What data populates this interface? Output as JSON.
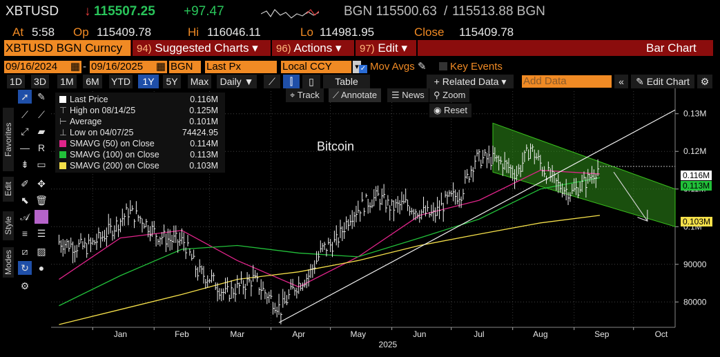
{
  "header": {
    "ticker": "XBTUSD",
    "last_price": "115507.25",
    "change": "+97.47",
    "source_bid": "BGN 115500.63",
    "ask": "115513.88 BGN",
    "at_label": "At",
    "time": "5:58",
    "open_label": "Op",
    "open": "115409.78",
    "high_label": "Hi",
    "high": "116046.11",
    "low_label": "Lo",
    "low": "114981.95",
    "close_label": "Close",
    "close": "115409.78"
  },
  "menubar": {
    "security": "XBTUSD BGN Curncy",
    "items": [
      {
        "num": "94)",
        "label": "Suggested Charts"
      },
      {
        "num": "96)",
        "label": "Actions"
      },
      {
        "num": "97)",
        "label": "Edit"
      }
    ],
    "view": "Bar Chart"
  },
  "controls": {
    "start_date": "09/16/2024",
    "end_date": "09/16/2025",
    "source": "BGN",
    "field": "Last Px",
    "currency": "Local CCY",
    "mov_avgs": "Mov Avgs",
    "key_events": "Key Events"
  },
  "toolbar": {
    "ranges": [
      "1D",
      "3D",
      "1M",
      "6M",
      "YTD",
      "1Y",
      "5Y",
      "Max"
    ],
    "active_range": "1Y",
    "period": "Daily",
    "table": "Table",
    "related_data": "Related Data",
    "add_data_placeholder": "Add Data",
    "edit_chart": "Edit Chart"
  },
  "chart_tools": {
    "track": "Track",
    "annotate": "Annotate",
    "news": "News",
    "zoom": "Zoom",
    "reset": "Reset"
  },
  "side_tabs": [
    "Favorites",
    "Edit",
    "Style",
    "Modes"
  ],
  "legend": [
    {
      "label": "Last Price",
      "value": "0.116M",
      "color": "#ffffff"
    },
    {
      "label": "High on 08/14/25",
      "value": "0.125M",
      "color": ""
    },
    {
      "label": "Average",
      "value": "0.101M",
      "color": ""
    },
    {
      "label": "Low on 04/07/25",
      "value": "74424.95",
      "color": ""
    },
    {
      "label": "SMAVG (50)  on Close",
      "value": "0.114M",
      "color": "#e0248a"
    },
    {
      "label": "SMAVG (100)  on Close",
      "value": "0.113M",
      "color": "#22c03a"
    },
    {
      "label": "SMAVG (200)  on Close",
      "value": "0.103M",
      "color": "#f5e04a"
    }
  ],
  "chart_annotation": "Bitcoin",
  "price_tags": {
    "last": "0.116M",
    "sma50": "0.114M",
    "sma100": "0.113M",
    "sma200": "0.103M"
  },
  "colors": {
    "accent": "#f08a24",
    "menubar": "#8b0d0d",
    "sma50": "#e0248a",
    "sma100": "#22c03a",
    "sma200": "#f5e04a",
    "channel": "#2f8f1a"
  },
  "chart_data": {
    "type": "bar",
    "title": "",
    "ylabel": "",
    "y_ticks": [
      "80000",
      "90000",
      "0.1M",
      "0.11M",
      "0.12M",
      "0.13M"
    ],
    "y_tick_values": [
      80000,
      90000,
      100000,
      110000,
      120000,
      130000
    ],
    "ylim": [
      74000,
      136000
    ],
    "x_ticks": [
      "Jan",
      "Feb",
      "Mar",
      "Apr",
      "May",
      "Jun",
      "Jul",
      "Aug",
      "Sep",
      "Oct"
    ],
    "x_year": "2025",
    "grid": true,
    "price_closes_weekly": [
      {
        "date": "2024-12-15",
        "close": 96000
      },
      {
        "date": "2024-12-22",
        "close": 95000
      },
      {
        "date": "2024-12-29",
        "close": 94500
      },
      {
        "date": "2025-01-05",
        "close": 97000
      },
      {
        "date": "2025-01-12",
        "close": 100000
      },
      {
        "date": "2025-01-19",
        "close": 104000
      },
      {
        "date": "2025-01-26",
        "close": 102000
      },
      {
        "date": "2025-02-02",
        "close": 98000
      },
      {
        "date": "2025-02-09",
        "close": 96500
      },
      {
        "date": "2025-02-16",
        "close": 96000
      },
      {
        "date": "2025-02-23",
        "close": 88000
      },
      {
        "date": "2025-03-02",
        "close": 86000
      },
      {
        "date": "2025-03-09",
        "close": 82000
      },
      {
        "date": "2025-03-16",
        "close": 84000
      },
      {
        "date": "2025-03-23",
        "close": 86000
      },
      {
        "date": "2025-03-30",
        "close": 82000
      },
      {
        "date": "2025-04-06",
        "close": 78000
      },
      {
        "date": "2025-04-13",
        "close": 84000
      },
      {
        "date": "2025-04-20",
        "close": 87000
      },
      {
        "date": "2025-04-27",
        "close": 94000
      },
      {
        "date": "2025-05-04",
        "close": 96000
      },
      {
        "date": "2025-05-11",
        "close": 103000
      },
      {
        "date": "2025-05-18",
        "close": 106000
      },
      {
        "date": "2025-05-25",
        "close": 108000
      },
      {
        "date": "2025-06-01",
        "close": 105000
      },
      {
        "date": "2025-06-08",
        "close": 106000
      },
      {
        "date": "2025-06-15",
        "close": 104000
      },
      {
        "date": "2025-06-22",
        "close": 103000
      },
      {
        "date": "2025-06-29",
        "close": 107000
      },
      {
        "date": "2025-07-06",
        "close": 109000
      },
      {
        "date": "2025-07-13",
        "close": 118000
      },
      {
        "date": "2025-07-20",
        "close": 118000
      },
      {
        "date": "2025-07-27",
        "close": 117000
      },
      {
        "date": "2025-08-03",
        "close": 114000
      },
      {
        "date": "2025-08-10",
        "close": 121000
      },
      {
        "date": "2025-08-17",
        "close": 115000
      },
      {
        "date": "2025-08-24",
        "close": 111000
      },
      {
        "date": "2025-08-31",
        "close": 109000
      },
      {
        "date": "2025-09-07",
        "close": 112000
      },
      {
        "date": "2025-09-14",
        "close": 116000
      }
    ],
    "series": [
      {
        "name": "SMAVG (50)  on Close",
        "color": "#e0248a",
        "points": [
          {
            "date": "2024-12-15",
            "value": 86000
          },
          {
            "date": "2025-01-15",
            "value": 97000
          },
          {
            "date": "2025-02-15",
            "value": 99000
          },
          {
            "date": "2025-03-15",
            "value": 91000
          },
          {
            "date": "2025-04-15",
            "value": 84000
          },
          {
            "date": "2025-05-15",
            "value": 92000
          },
          {
            "date": "2025-06-15",
            "value": 103000
          },
          {
            "date": "2025-07-15",
            "value": 107000
          },
          {
            "date": "2025-08-15",
            "value": 115000
          },
          {
            "date": "2025-09-14",
            "value": 114000
          }
        ]
      },
      {
        "name": "SMAVG (100)  on Close",
        "color": "#22c03a",
        "points": [
          {
            "date": "2024-12-15",
            "value": 79000
          },
          {
            "date": "2025-01-15",
            "value": 87000
          },
          {
            "date": "2025-02-15",
            "value": 94000
          },
          {
            "date": "2025-03-15",
            "value": 95000
          },
          {
            "date": "2025-04-15",
            "value": 93000
          },
          {
            "date": "2025-05-15",
            "value": 92000
          },
          {
            "date": "2025-06-15",
            "value": 97000
          },
          {
            "date": "2025-07-15",
            "value": 102000
          },
          {
            "date": "2025-08-15",
            "value": 110000
          },
          {
            "date": "2025-09-14",
            "value": 113000
          }
        ]
      },
      {
        "name": "SMAVG (200)  on Close",
        "color": "#f5e04a",
        "points": [
          {
            "date": "2024-12-15",
            "value": 74000
          },
          {
            "date": "2025-01-15",
            "value": 78000
          },
          {
            "date": "2025-02-15",
            "value": 82000
          },
          {
            "date": "2025-03-15",
            "value": 86000
          },
          {
            "date": "2025-04-15",
            "value": 88000
          },
          {
            "date": "2025-05-15",
            "value": 91000
          },
          {
            "date": "2025-06-15",
            "value": 95000
          },
          {
            "date": "2025-07-15",
            "value": 98000
          },
          {
            "date": "2025-08-15",
            "value": 101000
          },
          {
            "date": "2025-09-14",
            "value": 103000
          }
        ]
      }
    ]
  }
}
